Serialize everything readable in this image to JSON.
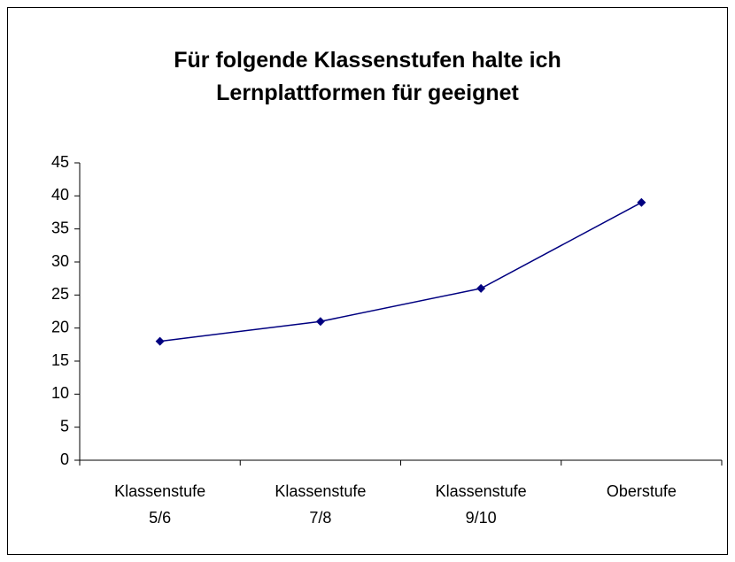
{
  "chart_data": {
    "type": "line",
    "title": "Für folgende Klassenstufen halte ich Lernplattformen für geeignet",
    "categories": [
      "Klassenstufe 5/6",
      "Klassenstufe 7/8",
      "Klassenstufe 9/10",
      "Oberstufe"
    ],
    "series": [
      {
        "name": null,
        "color": "#000080",
        "values": [
          18,
          21,
          26,
          39
        ]
      }
    ],
    "ylim": [
      0,
      45
    ],
    "yticks": [
      0,
      5,
      10,
      15,
      20,
      25,
      30,
      35,
      40,
      45
    ],
    "grid": false,
    "legend": false
  }
}
